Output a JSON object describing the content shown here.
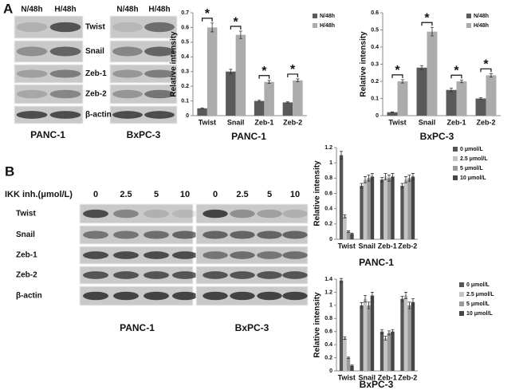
{
  "panel_labels": [
    "A",
    "B"
  ],
  "blots_a": {
    "columns": [
      "N/48h",
      "H/48h"
    ],
    "rows": [
      "Twist",
      "Snail",
      "Zeb-1",
      "Zeb-2",
      "β-actin"
    ],
    "cell_lines": [
      "PANC-1",
      "BxPC-3"
    ]
  },
  "blots_b": {
    "header": "IKK inh.(μmol/L)",
    "columns": [
      "0",
      "2.5",
      "5",
      "10"
    ],
    "rows": [
      "Twist",
      "Snail",
      "Zeb-1",
      "Zeb-2",
      "β-actin"
    ],
    "cell_lines": [
      "PANC-1",
      "BxPC-3"
    ]
  },
  "chart_data": [
    {
      "type": "bar",
      "title": "PANC-1",
      "ylabel": "Relative intensity",
      "legend": "right",
      "categories": [
        "Twist",
        "Snail",
        "Zeb-1",
        "Zeb-2"
      ],
      "series": [
        {
          "name": "N/48h",
          "color": "#5a5a5a",
          "values": [
            0.05,
            0.3,
            0.1,
            0.09
          ],
          "errors": [
            0.003,
            0.015,
            0.005,
            0.004
          ]
        },
        {
          "name": "H/48h",
          "color": "#acacac",
          "values": [
            0.6,
            0.55,
            0.23,
            0.24
          ],
          "errors": [
            0.03,
            0.025,
            0.01,
            0.01
          ]
        }
      ],
      "significance": [
        "*",
        "*",
        "*",
        "*"
      ],
      "ylim": [
        0,
        0.7
      ],
      "yticks": [
        0,
        0.1,
        0.2,
        0.3,
        0.4,
        0.5,
        0.6,
        0.7
      ]
    },
    {
      "type": "bar",
      "title": "BxPC-3",
      "ylabel": "Relative intensity",
      "legend": "upper right",
      "categories": [
        "Twist",
        "Snail",
        "Zeb-1",
        "Zeb-2"
      ],
      "series": [
        {
          "name": "N/48h",
          "color": "#5a5a5a",
          "values": [
            0.02,
            0.28,
            0.15,
            0.1
          ],
          "errors": [
            0.002,
            0.012,
            0.01,
            0.004
          ]
        },
        {
          "name": "H/48h",
          "color": "#acacac",
          "values": [
            0.2,
            0.49,
            0.2,
            0.235
          ],
          "errors": [
            0.01,
            0.025,
            0.008,
            0.01
          ]
        }
      ],
      "significance": [
        "*",
        "*",
        "*",
        "*"
      ],
      "ylim": [
        0,
        0.6
      ],
      "yticks": [
        0,
        0.1,
        0.2,
        0.3,
        0.4,
        0.5,
        0.6
      ]
    },
    {
      "type": "bar",
      "title": "PANC-1",
      "ylabel": "Relative intensity",
      "legend": "right",
      "categories": [
        "Twist",
        "Snail",
        "Zeb-1",
        "Zeb-2"
      ],
      "series": [
        {
          "name": "0 μmol/L",
          "color": "#555555",
          "values": [
            1.1,
            0.7,
            0.78,
            0.7
          ],
          "errors": [
            0.05,
            0.03,
            0.03,
            0.03
          ]
        },
        {
          "name": "2.5 μmol/L",
          "color": "#c4c4c4",
          "values": [
            0.3,
            0.78,
            0.82,
            0.78
          ],
          "errors": [
            0.02,
            0.04,
            0.04,
            0.04
          ]
        },
        {
          "name": "5 μmol/L",
          "color": "#9a9a9a",
          "values": [
            0.1,
            0.8,
            0.8,
            0.8
          ],
          "errors": [
            0.01,
            0.04,
            0.04,
            0.04
          ]
        },
        {
          "name": "10 μmol/L",
          "color": "#454545",
          "values": [
            0.07,
            0.82,
            0.82,
            0.82
          ],
          "errors": [
            0.01,
            0.04,
            0.04,
            0.04
          ]
        }
      ],
      "ylim": [
        0,
        1.2
      ],
      "yticks": [
        0,
        0.2,
        0.4,
        0.6,
        0.8,
        1,
        1.2
      ]
    },
    {
      "type": "bar",
      "title": "BxPC-3",
      "ylabel": "Relative intensity",
      "legend": "upper right",
      "categories": [
        "Twist",
        "Snail",
        "Zeb-1",
        "Zeb-2"
      ],
      "series": [
        {
          "name": "0 μmol/L",
          "color": "#555555",
          "values": [
            1.38,
            1.0,
            0.6,
            1.1
          ],
          "errors": [
            0.03,
            0.04,
            0.03,
            0.04
          ]
        },
        {
          "name": "2.5 μmol/L",
          "color": "#c4c4c4",
          "values": [
            0.5,
            1.1,
            0.5,
            1.15
          ],
          "errors": [
            0.02,
            0.05,
            0.03,
            0.05
          ]
        },
        {
          "name": "5 μmol/L",
          "color": "#9a9a9a",
          "values": [
            0.2,
            1.0,
            0.58,
            1.0
          ],
          "errors": [
            0.01,
            0.05,
            0.03,
            0.05
          ]
        },
        {
          "name": "10 μmol/L",
          "color": "#454545",
          "values": [
            0.08,
            1.15,
            0.6,
            1.05
          ],
          "errors": [
            0.01,
            0.05,
            0.03,
            0.05
          ]
        }
      ],
      "ylim": [
        0,
        1.4
      ],
      "yticks": [
        0,
        0.2,
        0.4,
        0.6,
        0.8,
        1,
        1.2,
        1.4
      ]
    }
  ]
}
